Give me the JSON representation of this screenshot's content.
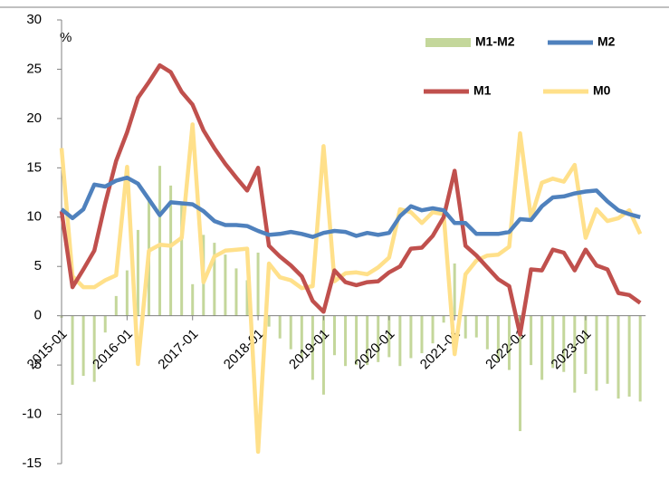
{
  "chart_data": {
    "type": "line",
    "y_label": "%",
    "ylim": [
      -15,
      30
    ],
    "yticks": [
      -15,
      -10,
      -5,
      0,
      5,
      10,
      15,
      20,
      25,
      30
    ],
    "grid": false,
    "categories": [
      "2015-01",
      null,
      null,
      null,
      null,
      null,
      "2016-01",
      null,
      null,
      null,
      null,
      null,
      "2017-01",
      null,
      null,
      null,
      null,
      null,
      "2018-01",
      null,
      null,
      null,
      null,
      null,
      "2019-01",
      null,
      null,
      null,
      null,
      null,
      "2020-01",
      null,
      null,
      null,
      null,
      null,
      "2021-01",
      null,
      null,
      null,
      null,
      null,
      "2022-01",
      null,
      null,
      null,
      null,
      null,
      "2023-01",
      null,
      null,
      null,
      null,
      null
    ],
    "series": [
      {
        "name": "M1-M2",
        "type": "bar",
        "color": "#c4d79b",
        "values": [
          -0.2,
          -7,
          -6.1,
          -6.7,
          -1.7,
          2,
          4.6,
          8.7,
          11.9,
          15.2,
          13.2,
          11.3,
          3.2,
          8.2,
          7.4,
          6.2,
          4.8,
          3.6,
          6.4,
          -1.1,
          -2.3,
          -3.4,
          -4.3,
          -6.5,
          -8,
          -4,
          -5.1,
          -5,
          -5,
          -4.7,
          -4.2,
          -5.1,
          -4.3,
          -3.8,
          -2.8,
          -0.7,
          5.3,
          -2.3,
          -2.2,
          -3.4,
          -4.6,
          -5.5,
          -11.7,
          -5,
          -6.5,
          -5.3,
          -5.7,
          -7.8,
          -5.9,
          -7.6,
          -6.9,
          -8.4,
          -8.2,
          -8.7
        ]
      },
      {
        "name": "M2",
        "type": "line",
        "color": "#4f81bd",
        "values": [
          10.8,
          9.9,
          10.8,
          13.3,
          13.1,
          13.7,
          14,
          13.4,
          11.8,
          10.2,
          11.5,
          11.4,
          11.3,
          10.6,
          9.6,
          9.2,
          9.2,
          9.1,
          8.6,
          8.2,
          8.3,
          8.5,
          8.3,
          8,
          8.4,
          8.6,
          8.5,
          8.1,
          8.4,
          8.2,
          8.4,
          10.1,
          11.1,
          10.7,
          10.9,
          10.7,
          9.4,
          9.4,
          8.3,
          8.3,
          8.3,
          8.5,
          9.8,
          9.7,
          11.1,
          12,
          12.1,
          12.4,
          12.6,
          12.7,
          11.6,
          10.7,
          10.3,
          10
        ]
      },
      {
        "name": "M1",
        "type": "line",
        "color": "#c0504d",
        "values": [
          10.6,
          2.9,
          4.7,
          6.6,
          11.4,
          15.7,
          18.6,
          22.1,
          23.7,
          25.4,
          24.7,
          22.7,
          21.4,
          18.8,
          17,
          15.4,
          14,
          12.7,
          15,
          7.1,
          6,
          5.1,
          4,
          1.5,
          0.4,
          4.6,
          3.4,
          3.1,
          3.4,
          3.5,
          4.4,
          5,
          6.8,
          6.9,
          8.1,
          10,
          14.7,
          7.1,
          6.1,
          4.9,
          3.7,
          3,
          -1.9,
          4.7,
          4.6,
          6.7,
          6.4,
          4.6,
          6.7,
          5.1,
          4.7,
          2.3,
          2.1,
          1.3
        ]
      },
      {
        "name": "M0",
        "type": "line",
        "color": "#ffe08a",
        "values": [
          17,
          4,
          2.9,
          2.9,
          3.6,
          4.1,
          15.1,
          -4.9,
          6.6,
          7.2,
          7.1,
          7.9,
          19.4,
          3.4,
          6,
          6.6,
          6.7,
          6.8,
          -13.8,
          5.3,
          3.9,
          3.6,
          2.8,
          3,
          17.2,
          3.5,
          4.3,
          4.4,
          4.2,
          4.9,
          5.9,
          10.8,
          10.5,
          9.4,
          10.5,
          10.3,
          -3.9,
          4.2,
          5.6,
          6.1,
          6.2,
          7,
          18.5,
          9.9,
          13.5,
          13.9,
          13.6,
          15.3,
          7.9,
          10.8,
          9.6,
          9.9,
          10.7,
          8.3
        ]
      }
    ]
  }
}
